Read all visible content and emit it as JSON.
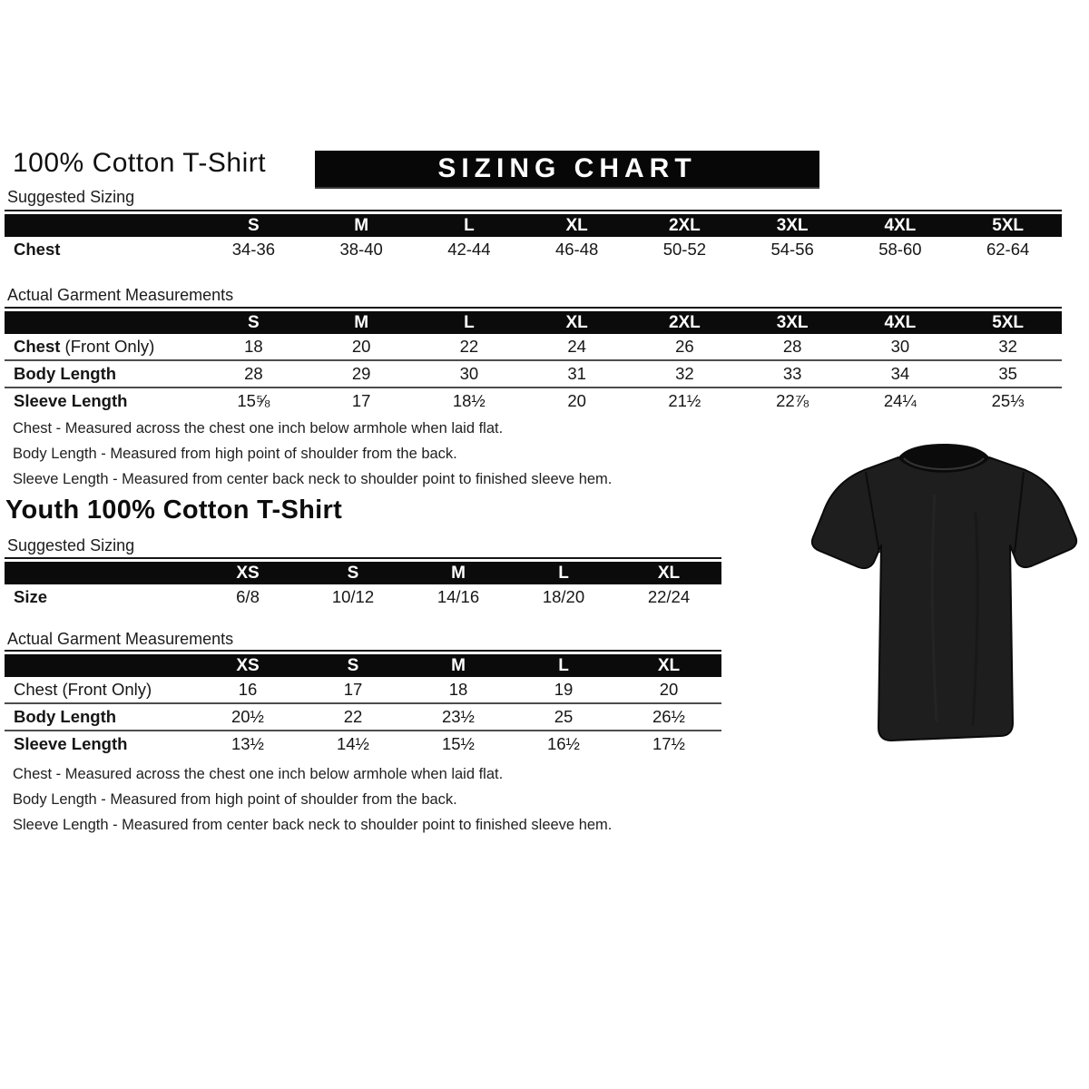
{
  "colors": {
    "header_bar": "#0b0b0b",
    "banner_bg": "#070707",
    "text": "#161616",
    "shirt": "#1e1e1e"
  },
  "banner": {
    "text": "SIZING CHART"
  },
  "adult": {
    "title": "100% Cotton T-Shirt",
    "suggested_label": "Suggested Sizing",
    "suggested": {
      "columns": [
        "S",
        "M",
        "L",
        "XL",
        "2XL",
        "3XL",
        "4XL",
        "5XL"
      ],
      "rows": [
        {
          "label": "Chest",
          "values": [
            "34-36",
            "38-40",
            "42-44",
            "46-48",
            "50-52",
            "54-56",
            "58-60",
            "62-64"
          ]
        }
      ]
    },
    "actual_label": "Actual Garment Measurements",
    "actual": {
      "columns": [
        "S",
        "M",
        "L",
        "XL",
        "2XL",
        "3XL",
        "4XL",
        "5XL"
      ],
      "rows": [
        {
          "label": "Chest",
          "suffix": " (Front Only)",
          "values": [
            "18",
            "20",
            "22",
            "24",
            "26",
            "28",
            "30",
            "32"
          ]
        },
        {
          "label": "Body Length",
          "values": [
            "28",
            "29",
            "30",
            "31",
            "32",
            "33",
            "34",
            "35"
          ]
        },
        {
          "label": "Sleeve Length",
          "values": [
            "15⅝",
            "17",
            "18½",
            "20",
            "21½",
            "22⅞",
            "24¼",
            "25⅓"
          ]
        }
      ]
    },
    "notes": [
      "Chest - Measured across the chest one inch below armhole when laid flat.",
      "Body Length - Measured from high point of shoulder from the back.",
      "Sleeve Length - Measured from center back neck to shoulder point to finished sleeve hem."
    ]
  },
  "youth": {
    "title": "Youth 100% Cotton T-Shirt",
    "suggested_label": "Suggested Sizing",
    "suggested": {
      "columns": [
        "XS",
        "S",
        "M",
        "L",
        "XL"
      ],
      "rows": [
        {
          "label": "Size",
          "values": [
            "6/8",
            "10/12",
            "14/16",
            "18/20",
            "22/24"
          ]
        }
      ]
    },
    "actual_label": "Actual Garment Measurements",
    "actual": {
      "columns": [
        "XS",
        "S",
        "M",
        "L",
        "XL"
      ],
      "rows": [
        {
          "label": "Chest (Front Only)",
          "bold": false,
          "values": [
            "16",
            "17",
            "18",
            "19",
            "20"
          ]
        },
        {
          "label": "Body Length",
          "values": [
            "20½",
            "22",
            "23½",
            "25",
            "26½"
          ]
        },
        {
          "label": "Sleeve Length",
          "values": [
            "13½",
            "14½",
            "15½",
            "16½",
            "17½"
          ]
        }
      ]
    },
    "notes": [
      "Chest - Measured across the chest one inch below armhole when laid flat.",
      "Body Length - Measured from high point of shoulder from the back.",
      "Sleeve Length - Measured from center back neck to shoulder point to finished sleeve hem."
    ]
  },
  "tshirt_image": "black cotton t-shirt product photo"
}
